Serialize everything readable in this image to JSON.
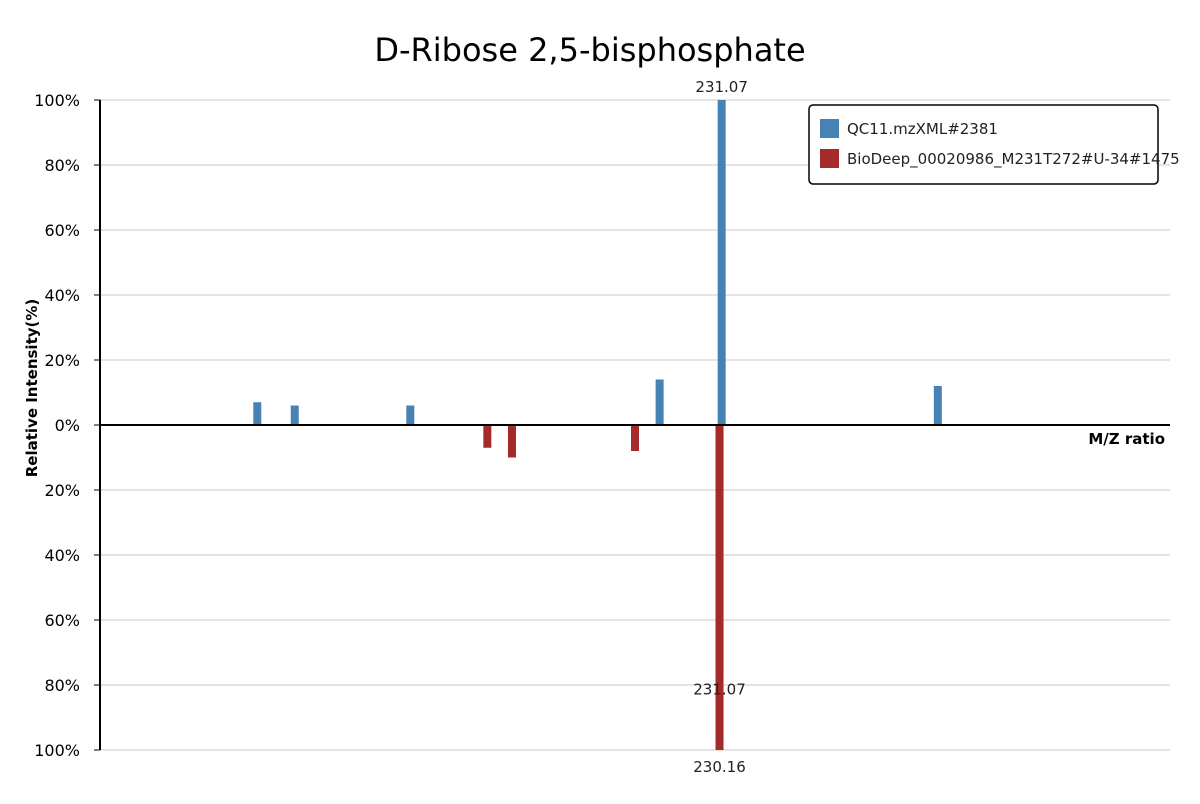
{
  "chart_data": {
    "type": "bar",
    "title": "D-Ribose 2,5-bisphosphate",
    "ylabel": "Relative Intensity(%)",
    "xlabel": "M/Z ratio",
    "ylim_top": [
      0,
      100
    ],
    "ylim_bottom": [
      0,
      100
    ],
    "y_ticks_top": [
      "0%",
      "20%",
      "40%",
      "60%",
      "80%",
      "100%"
    ],
    "y_ticks_bottom": [
      "20%",
      "40%",
      "60%",
      "80%",
      "100%"
    ],
    "grid": true,
    "legend_position": "top-right",
    "xlim": [
      0,
      100
    ],
    "series": [
      {
        "name": "QC11.mzXML#2381",
        "color": "#4682b4",
        "direction": "up",
        "peaks": [
          {
            "x": 14.7,
            "y": 7
          },
          {
            "x": 18.2,
            "y": 6
          },
          {
            "x": 29.0,
            "y": 6
          },
          {
            "x": 52.3,
            "y": 14
          },
          {
            "x": 58.1,
            "y": 100,
            "label": "231.07"
          },
          {
            "x": 78.3,
            "y": 12
          }
        ]
      },
      {
        "name": "BioDeep_00020986_M231T272#U-34#1475",
        "color": "#a52a2a",
        "direction": "down",
        "peaks": [
          {
            "x": 36.2,
            "y": 7
          },
          {
            "x": 38.5,
            "y": 10
          },
          {
            "x": 50.0,
            "y": 8
          },
          {
            "x": 57.9,
            "y": 77,
            "label": "231.07"
          },
          {
            "x": 57.9,
            "y": 100,
            "label": "230.16"
          }
        ]
      }
    ]
  }
}
